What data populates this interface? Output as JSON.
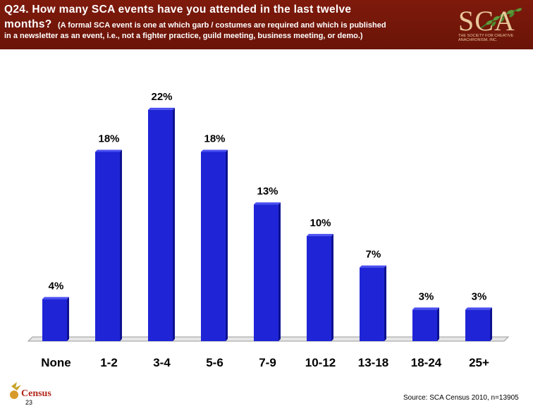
{
  "header": {
    "question_main": "Q24. How many SCA events have you attended in the last twelve",
    "question_cont": "months?",
    "question_note_part1": "(A formal SCA event is one at which garb / costumes are required and which is published",
    "question_note_part2": "in a newsletter as an event, i.e., not a fighter practice, guild meeting, business meeting, or demo.)"
  },
  "logo": {
    "text": "SCA",
    "subtitle_line1": "THE SOCIETY FOR CREATIVE",
    "subtitle_line2": "ANACHRONISM, INC."
  },
  "footer": {
    "source": "Source: SCA Census 2010, n=13905",
    "page_number": "23",
    "census_logo_text": "Census"
  },
  "colors": {
    "header_bg": "#741709",
    "bar_fill": "#1f25d6",
    "bar_top": "#4a50f0",
    "bar_side": "#0d1190"
  },
  "chart_data": {
    "type": "bar",
    "categories": [
      "None",
      "1-2",
      "3-4",
      "5-6",
      "7-9",
      "10-12",
      "13-18",
      "18-24",
      "25+"
    ],
    "values": [
      4,
      18,
      22,
      18,
      13,
      10,
      7,
      3,
      3
    ],
    "data_labels": [
      "4%",
      "18%",
      "22%",
      "18%",
      "13%",
      "10%",
      "7%",
      "3%",
      "3%"
    ],
    "title": "",
    "xlabel": "",
    "ylabel": "",
    "ylim": [
      0,
      24
    ],
    "grid": false,
    "legend": "none"
  }
}
